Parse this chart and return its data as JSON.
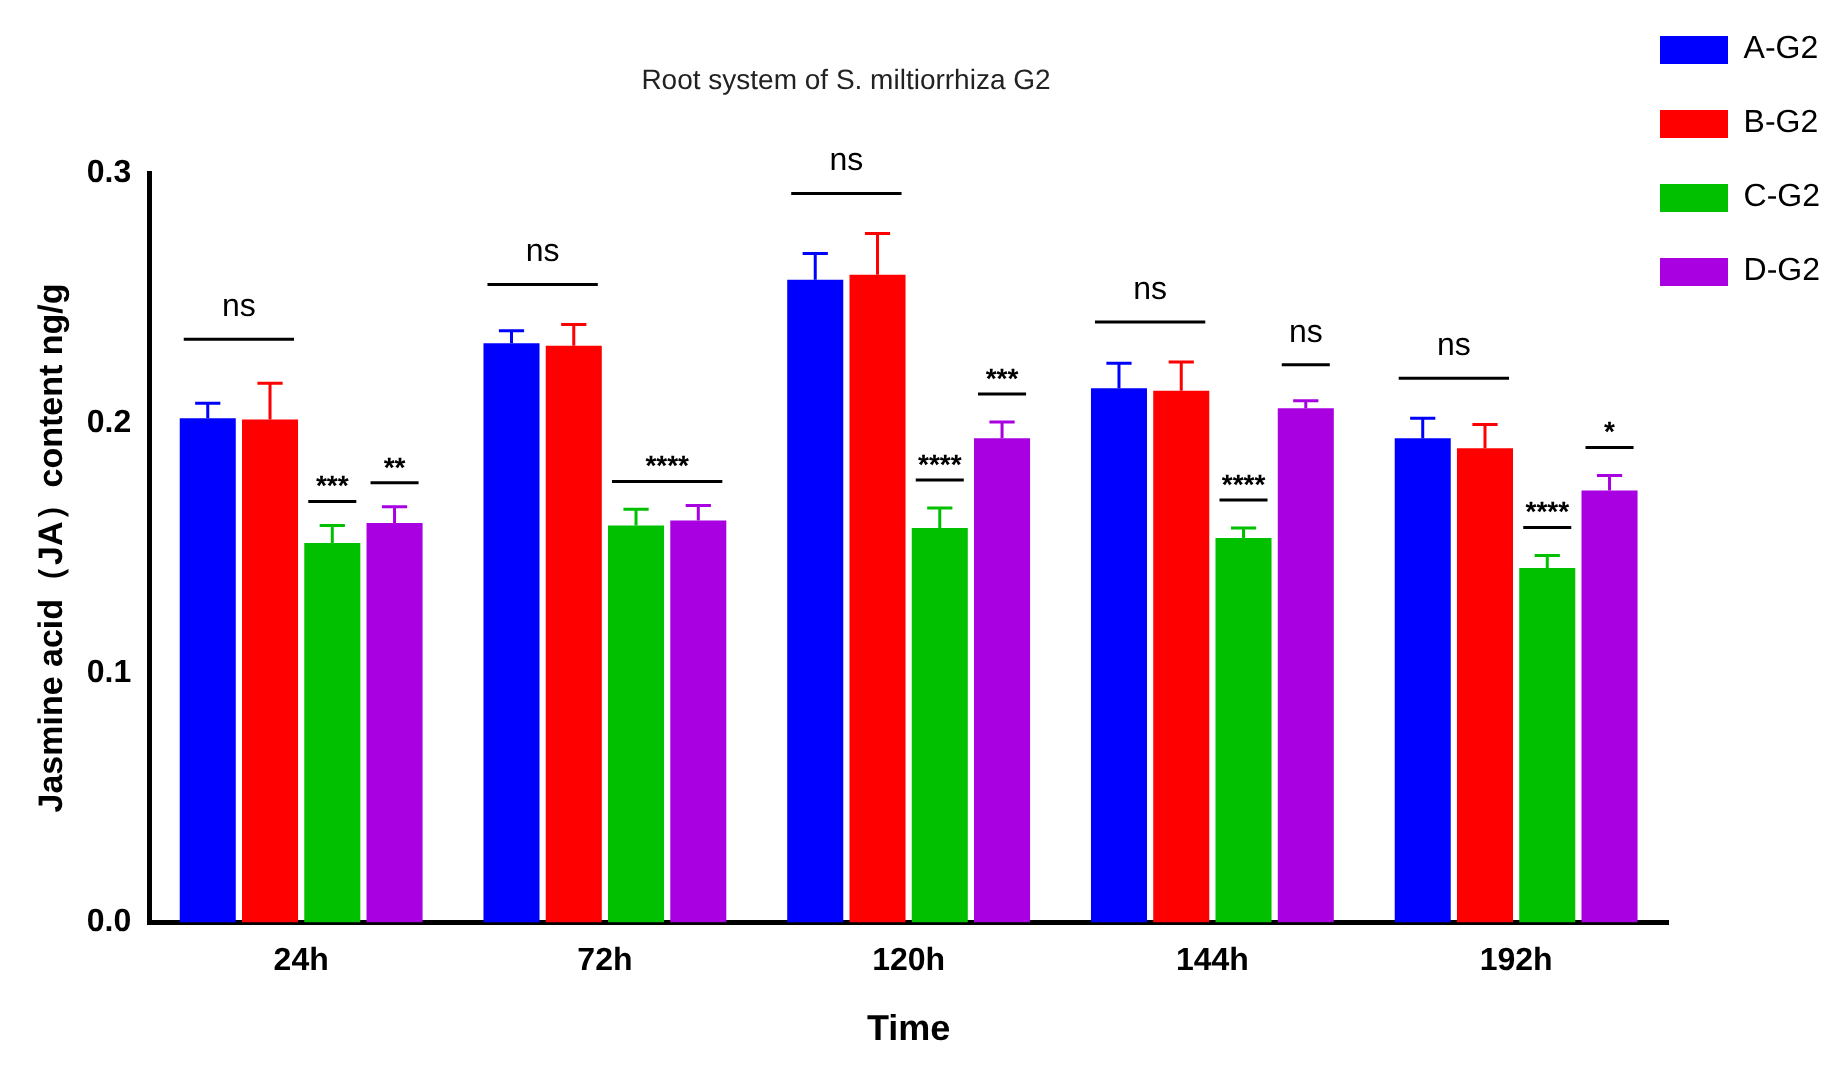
{
  "chart_data": {
    "type": "bar",
    "title": "Root system of S. miltiorrhiza G2",
    "xlabel": "Time",
    "ylabel": "Jasmine acid（JA）content ng/g",
    "categories": [
      "24h",
      "72h",
      "120h",
      "144h",
      "192h"
    ],
    "series": [
      {
        "name": "A-G2",
        "color": "#0000ff",
        "values": [
          0.202,
          0.232,
          0.2575,
          0.214,
          0.194
        ],
        "errors": [
          [
            0.202,
            0.208
          ],
          [
            0.232,
            0.237
          ],
          [
            0.2575,
            0.268
          ],
          [
            0.214,
            0.224
          ],
          [
            0.194,
            0.202
          ]
        ]
      },
      {
        "name": "B-G2",
        "color": "#ff0000",
        "values": [
          0.2015,
          0.231,
          0.2595,
          0.213,
          0.19
        ],
        "errors": [
          [
            0.2015,
            0.216
          ],
          [
            0.231,
            0.2395
          ],
          [
            0.2595,
            0.276
          ],
          [
            0.213,
            0.2245
          ],
          [
            0.19,
            0.1995
          ]
        ]
      },
      {
        "name": "C-G2",
        "color": "#00c000",
        "values": [
          0.152,
          0.159,
          0.158,
          0.154,
          0.142
        ],
        "errors": [
          [
            0.152,
            0.159
          ],
          [
            0.159,
            0.1655
          ],
          [
            0.158,
            0.166
          ],
          [
            0.154,
            0.158
          ],
          [
            0.142,
            0.147
          ]
        ]
      },
      {
        "name": "D-G2",
        "color": "#a800e0",
        "values": [
          0.16,
          0.161,
          0.194,
          0.206,
          0.173
        ],
        "errors": [
          [
            0.16,
            0.1665
          ],
          [
            0.161,
            0.167
          ],
          [
            0.194,
            0.2005
          ],
          [
            0.206,
            0.209
          ],
          [
            0.173,
            0.179
          ]
        ]
      }
    ],
    "ylim": [
      0,
      0.3
    ],
    "yticks": [
      {
        "value": 0,
        "label": "0.0"
      },
      {
        "value": 0.1,
        "label": "0.1"
      },
      {
        "value": 0.2,
        "label": "0.2"
      },
      {
        "value": 0.3,
        "label": "0.3"
      }
    ],
    "grid": false,
    "legend": "top right",
    "annotations": [
      "ns",
      "***",
      "**",
      "ns",
      "****",
      "ns",
      "****",
      "***",
      "ns",
      "****",
      "ns",
      "ns",
      "****",
      "*"
    ]
  }
}
